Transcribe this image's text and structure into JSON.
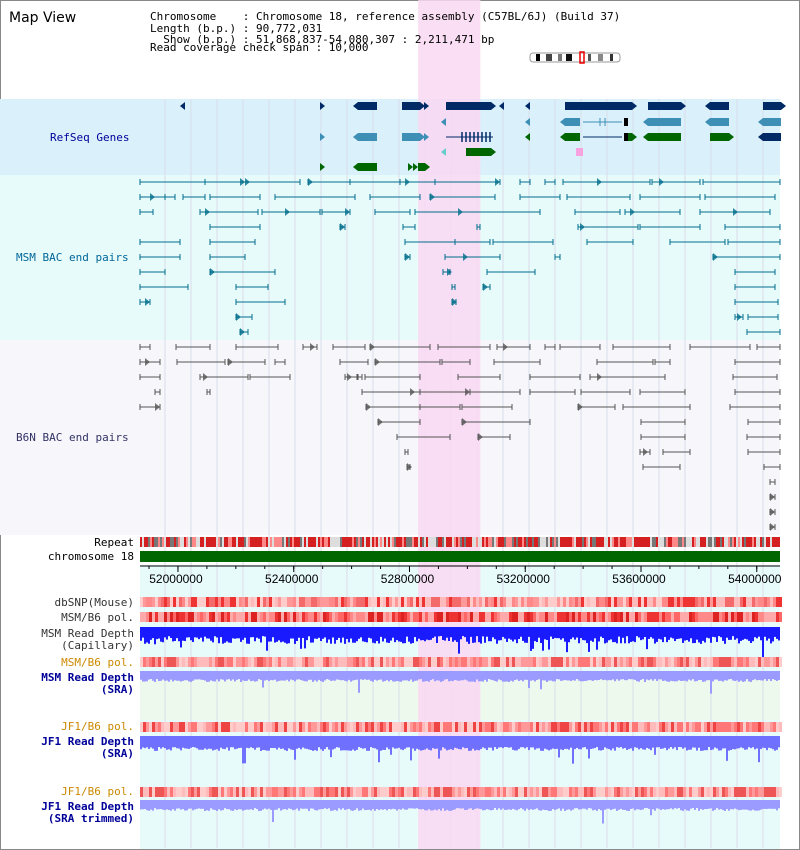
{
  "header": {
    "title": "Map View",
    "chromosome_line": "Chromosome    : Chromosome 18, reference assembly (C57BL/6J) (Build 37)",
    "length_line": "Length (b.p.) : 90,772,031",
    "show_line": "  Show (b.p.) : 51,868,837-54,080,307 : 2,211,471 bp",
    "coverage_line": "Read coverage check span : 10,000"
  },
  "tracks": {
    "refseq": "RefSeq Genes",
    "msm_bac": "MSM BAC end pairs",
    "b6n_bac": "B6N BAC end pairs",
    "repeat": "Repeat",
    "chromosome": "chromosome 18",
    "dbsnp": "dbSNP(Mouse)",
    "msm_b6_pol": "MSM/B6 pol.",
    "msm_depth_cap_1": "MSM Read Depth",
    "msm_depth_cap_2": "(Capillary)",
    "msm_b6_pol_sra": "MSM/B6 pol.",
    "msm_depth_sra_1": "MSM Read Depth",
    "msm_depth_sra_2": "(SRA)",
    "jf1_b6_pol": "JF1/B6 pol.",
    "jf1_depth_1": "JF1 Read Depth",
    "jf1_depth_2": "(SRA)",
    "jf1_b6_pol_2": "JF1/B6 pol.",
    "jf1_depth_trim_1": "JF1 Read Depth",
    "jf1_depth_trim_2": "(SRA trimmed)"
  },
  "axis": {
    "ticks": [
      "52000000",
      "52400000",
      "52800000",
      "53200000",
      "53600000",
      "54000000"
    ],
    "tick_positions_bp": [
      52000000,
      52400000,
      52800000,
      53200000,
      53600000,
      54000000
    ],
    "range_bp": [
      51868837,
      54080307
    ]
  },
  "highlight_range_bp": [
    52830000,
    53045000
  ],
  "colors": {
    "refseq_bg": "#daf1fb",
    "msm_bg": "#e8fbfb",
    "b6n_bg": "#f6f6fb",
    "highlight": "#f9d8f2",
    "refseq_label": "#000099",
    "msm_label": "#006699",
    "b6n_label": "#333366",
    "gene_dark": "#002a66",
    "gene_mid": "#3d8fb6",
    "gene_green": "#006600",
    "msm_feature": "#006e8c",
    "b6n_feature": "#555555",
    "pol_label": "#cc8800",
    "depth_label": "#000099",
    "chromosome_bar": "#006600"
  }
}
